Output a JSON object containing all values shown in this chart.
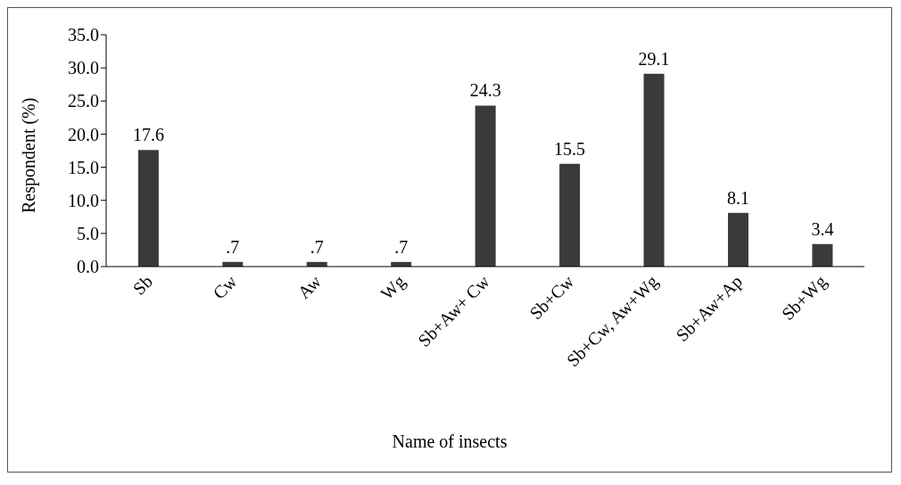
{
  "chart_data": {
    "type": "bar",
    "xlabel": "Name of insects",
    "ylabel": "Respondent (%)",
    "categories": [
      "Sb",
      "Cw",
      "Aw",
      "Wg",
      "Sb+Aw+ Cw",
      "Sb+Cw",
      "Sb+Cw, Aw+Wg",
      "Sb+Aw+Ap",
      "Sb+Wg"
    ],
    "values": [
      17.6,
      0.7,
      0.7,
      0.7,
      24.3,
      15.5,
      29.1,
      8.1,
      3.4
    ],
    "value_labels": [
      "17.6",
      ".7",
      ".7",
      ".7",
      "24.3",
      "15.5",
      "29.1",
      "8.1",
      "3.4"
    ],
    "color": "#3a3a3a",
    "ylim": [
      0,
      35
    ],
    "yticks": [
      {
        "value": 0,
        "label": "0.0"
      },
      {
        "value": 5,
        "label": "5.0"
      },
      {
        "value": 10,
        "label": "10.0"
      },
      {
        "value": 15,
        "label": "15.0"
      },
      {
        "value": 20,
        "label": "20.0"
      },
      {
        "value": 25,
        "label": "25.0"
      },
      {
        "value": 30,
        "label": "30.0"
      },
      {
        "value": 35,
        "label": "35.0"
      }
    ],
    "grid": false,
    "legend": false
  }
}
